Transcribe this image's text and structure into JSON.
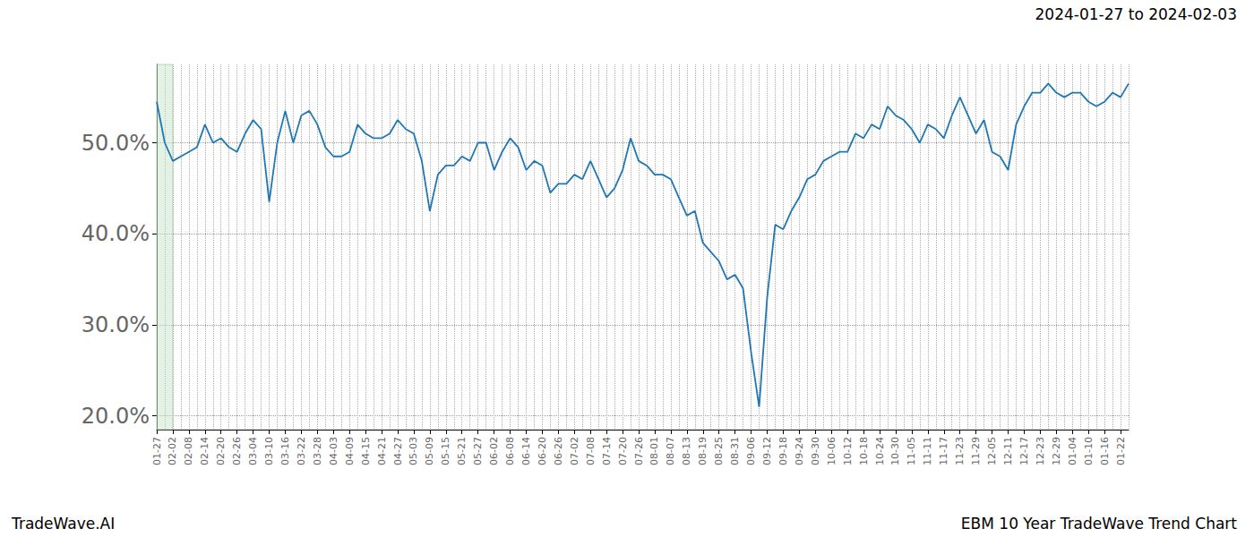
{
  "chart_data": {
    "type": "line",
    "title": "EBM 10 Year TradeWave Trend Chart",
    "subtitle": "2024-01-27 to 2024-02-03",
    "annotations": [
      "TradeWave.AI"
    ],
    "highlight": [
      "01-27",
      "02-02"
    ],
    "color": "#1f77b4",
    "grid": true,
    "categories": [
      "01-27",
      null,
      "02-02",
      null,
      "02-08",
      null,
      "02-14",
      null,
      "02-20",
      null,
      "02-26",
      null,
      "03-04",
      null,
      "03-10",
      null,
      "03-16",
      null,
      "03-22",
      null,
      "03-28",
      null,
      "04-03",
      null,
      "04-09",
      null,
      "04-15",
      null,
      "04-21",
      null,
      "04-27",
      null,
      "05-03",
      null,
      "05-09",
      null,
      "05-15",
      null,
      "05-21",
      null,
      "05-27",
      null,
      "06-02",
      null,
      "06-08",
      null,
      "06-14",
      null,
      "06-20",
      null,
      "06-26",
      null,
      "07-02",
      null,
      "07-08",
      null,
      "07-14",
      null,
      "07-20",
      null,
      "07-26",
      null,
      "08-01",
      null,
      "08-07",
      null,
      "08-13",
      null,
      "08-19",
      null,
      "08-25",
      null,
      "08-31",
      null,
      "09-06",
      null,
      "09-12",
      null,
      "09-18",
      null,
      "09-24",
      null,
      "09-30",
      null,
      "10-06",
      null,
      "10-12",
      null,
      "10-18",
      null,
      "10-24",
      null,
      "10-30",
      null,
      "11-05",
      null,
      "11-11",
      null,
      "11-17",
      null,
      "11-23",
      null,
      "11-29",
      null,
      "12-05",
      null,
      "12-11",
      null,
      "12-17",
      null,
      "12-23",
      null,
      "12-29",
      null,
      "01-04",
      null,
      "01-10",
      null,
      "01-16",
      null,
      "01-22",
      null
    ],
    "values": [
      54.5,
      50,
      48,
      48.5,
      49,
      49.5,
      52,
      50,
      50.5,
      49.5,
      49,
      51,
      52.5,
      51.5,
      43.5,
      50,
      53.5,
      50,
      53,
      53.5,
      52,
      49.5,
      48.5,
      48.5,
      49,
      52,
      51,
      50.5,
      50.5,
      51,
      52.5,
      51.5,
      51,
      48,
      42.5,
      46.5,
      47.5,
      47.5,
      48.5,
      48,
      50,
      50,
      47,
      49,
      50.5,
      49.5,
      47,
      48,
      47.5,
      44.5,
      45.5,
      45.5,
      46.5,
      46,
      48,
      46,
      44,
      45,
      47,
      50.5,
      48,
      47.5,
      46.5,
      46.5,
      46,
      44,
      42,
      42.5,
      39,
      38,
      37,
      35,
      35.5,
      34,
      27,
      21,
      33,
      41,
      40.5,
      42.5,
      44,
      46,
      46.5,
      48,
      48.5,
      49,
      49,
      51,
      50.5,
      52,
      51.5,
      54,
      53,
      52.5,
      51.5,
      50,
      52,
      51.5,
      50.5,
      53,
      55,
      53,
      51,
      52.5,
      49,
      48.5,
      47,
      52,
      54,
      55.5,
      55.5,
      56.5,
      55.5,
      55,
      55.5,
      55.5,
      54.5,
      54,
      54.5,
      55.5,
      55,
      56.5
    ],
    "ylim": [
      18.5,
      58.6
    ],
    "yticks": [
      {
        "value": 20,
        "label": "20.0%"
      },
      {
        "value": 30,
        "label": "30.0%"
      },
      {
        "value": 40,
        "label": "40.0%"
      },
      {
        "value": 50,
        "label": "50.0%"
      }
    ]
  }
}
